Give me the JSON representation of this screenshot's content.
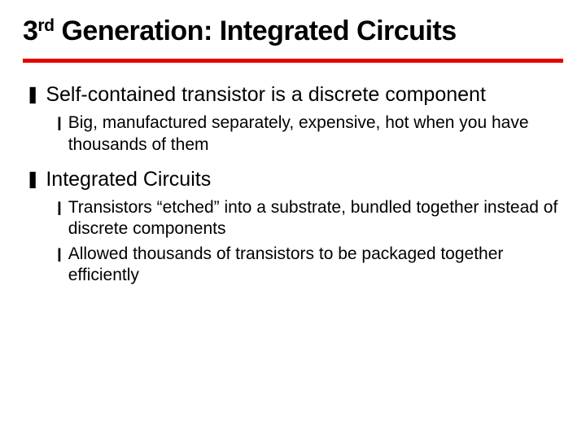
{
  "title_html": "3<sup>rd</sup> Generation: Integrated Circuits",
  "title_fontsize": 34,
  "title_color": "#000000",
  "rule_color": "#e70000",
  "rule_height": 5,
  "text_color": "#000000",
  "bullet1_glyph": "❚",
  "bullet1_color": "#000000",
  "bullet2_glyph": "❙",
  "bullet2_color": "#000000",
  "lvl1_fontsize": 25,
  "lvl2_fontsize": 21,
  "items": [
    {
      "text": "Self-contained transistor is a discrete component",
      "sub": [
        "Big, manufactured separately, expensive, hot when you have thousands of them"
      ]
    },
    {
      "text": "Integrated Circuits",
      "sub": [
        "Transistors “etched” into a substrate, bundled together instead of discrete components",
        "Allowed thousands of transistors to be packaged together efficiently"
      ]
    }
  ]
}
